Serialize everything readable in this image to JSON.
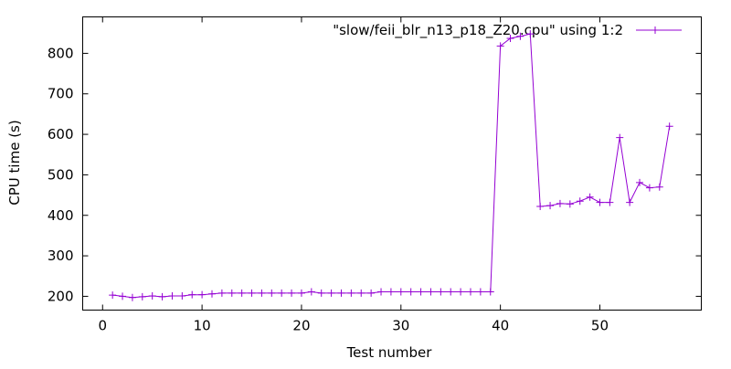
{
  "chart_data": {
    "type": "line",
    "title": "",
    "xlabel": "Test number",
    "ylabel": "CPU time (s)",
    "xlim": [
      -2,
      60.2
    ],
    "ylim": [
      166,
      890
    ],
    "xticks": [
      0,
      10,
      20,
      30,
      40,
      50
    ],
    "yticks": [
      200,
      300,
      400,
      500,
      600,
      700,
      800
    ],
    "grid": false,
    "legend_position": "top-right",
    "series": [
      {
        "name": "\"slow/feii_blr_n13_p18_Z20.cpu\" using 1:2",
        "color": "#9400d3",
        "marker": "plus",
        "x": [
          1,
          2,
          3,
          4,
          5,
          6,
          7,
          8,
          9,
          10,
          11,
          12,
          13,
          14,
          15,
          16,
          17,
          18,
          19,
          20,
          21,
          22,
          23,
          24,
          25,
          26,
          27,
          28,
          29,
          30,
          31,
          32,
          33,
          34,
          35,
          36,
          37,
          38,
          39,
          40,
          41,
          42,
          43,
          44,
          45,
          46,
          47,
          48,
          49,
          50,
          51,
          52,
          53,
          54,
          55,
          56,
          57
        ],
        "values": [
          203,
          200,
          197,
          199,
          201,
          199,
          201,
          201,
          204,
          204,
          206,
          208,
          208,
          208,
          208,
          208,
          208,
          208,
          208,
          208,
          211,
          208,
          208,
          208,
          208,
          208,
          208,
          211,
          211,
          211,
          211,
          211,
          211,
          211,
          211,
          211,
          211,
          211,
          211,
          818,
          837,
          842,
          848,
          422,
          424,
          429,
          428,
          435,
          445,
          432,
          432,
          592,
          432,
          481,
          468,
          470,
          620
        ]
      }
    ]
  }
}
